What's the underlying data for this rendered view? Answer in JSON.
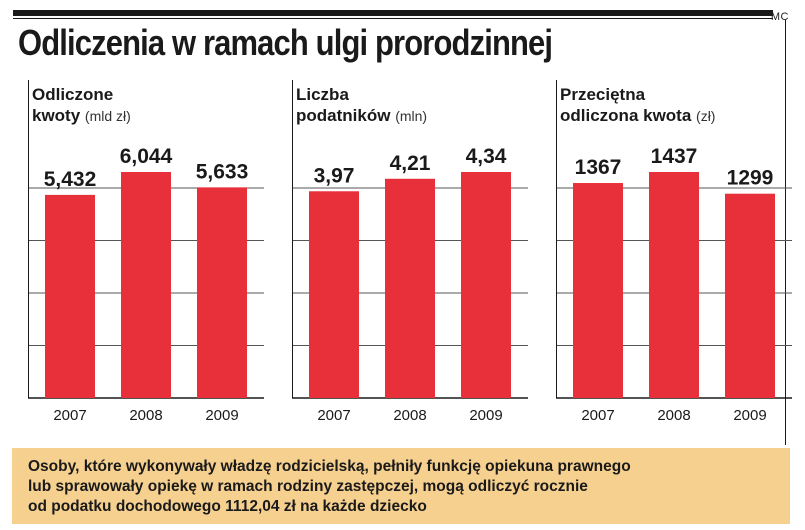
{
  "title": "Odliczenia w ramach ulgi prorodzinnej",
  "credit": "MC",
  "colors": {
    "bar": "#e8303a",
    "grid": "#555555",
    "footer_bg": "#f6d08f"
  },
  "chart_data": [
    {
      "type": "bar",
      "label_line1": "Odliczone",
      "label_line2": "kwoty",
      "unit": "(mld zł)",
      "categories": [
        "2007",
        "2008",
        "2009"
      ],
      "values": [
        5.432,
        6.044,
        5.633
      ],
      "value_labels": [
        "5,432",
        "6,044",
        "5,633"
      ]
    },
    {
      "type": "bar",
      "label_line1": "Liczba",
      "label_line2": "podatników",
      "unit": "(mln)",
      "categories": [
        "2007",
        "2008",
        "2009"
      ],
      "values": [
        3.97,
        4.21,
        4.34
      ],
      "value_labels": [
        "3,97",
        "4,21",
        "4,34"
      ]
    },
    {
      "type": "bar",
      "label_line1": "Przeciętna",
      "label_line2": "odliczona kwota",
      "unit": "(zł)",
      "categories": [
        "2007",
        "2008",
        "2009"
      ],
      "values": [
        1367,
        1437,
        1299
      ],
      "value_labels": [
        "1367",
        "1437",
        "1299"
      ]
    }
  ],
  "footer": {
    "line1": "Osoby, które wykonywały władzę rodzicielską, pełniły funkcję opiekuna prawnego",
    "line2": "lub sprawowały opiekę w ramach rodziny zastępczej, mogą odliczyć rocznie",
    "line3": "od podatku dochodowego 1112,04 zł na każde dziecko"
  }
}
